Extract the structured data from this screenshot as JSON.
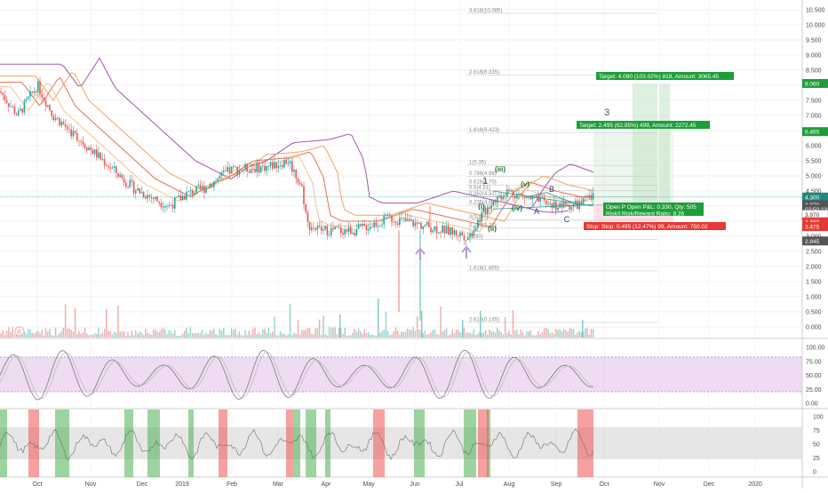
{
  "price_axis": {
    "ticks": [
      "10.500",
      "10.000",
      "9.500",
      "9.000",
      "8.500",
      "8.000",
      "7.500",
      "7.000",
      "6.500",
      "6.000",
      "5.500",
      "5.000",
      "4.500",
      "4.000",
      "3.500",
      "3.000",
      "2.500",
      "2.000",
      "1.500",
      "1.000",
      "0.500",
      "0.000"
    ],
    "tags": [
      {
        "text": "8.060",
        "color": "#1e9e3a",
        "value": 8.06
      },
      {
        "text": "6.465",
        "color": "#1e9e3a",
        "value": 6.465
      },
      {
        "text": "4.300",
        "color": "#1f8a80",
        "value": 4.3
      },
      {
        "text": "3.970",
        "color": "#555555",
        "value": 4.04
      },
      {
        "text": "02:50:13",
        "color": "#555555",
        "value": 3.9
      },
      {
        "text": "3.970",
        "color": "#ffffff",
        "value": 3.72
      },
      {
        "text": "3.480",
        "color": "#e53935",
        "value": 3.48
      },
      {
        "text": "3.475",
        "color": "#e53935",
        "value": 3.32
      },
      {
        "text": "2.845",
        "color": "#555555",
        "value": 2.845
      }
    ]
  },
  "stoch_axis": {
    "ticks": [
      "100.00",
      "75.00",
      "50.00",
      "25.00",
      "0.00"
    ]
  },
  "rsi_axis": {
    "ticks": [
      "100",
      "75",
      "50",
      "25",
      "0"
    ]
  },
  "time_axis": {
    "labels": [
      "Oct",
      "Nov",
      "Dec",
      "2019",
      "Feb",
      "Mar",
      "Apr",
      "May",
      "Jun",
      "Jul",
      "Aug",
      "Sep",
      "Oct",
      "Nov",
      "Dec",
      "2020"
    ]
  },
  "fib_levels": [
    {
      "text": "3.618(10.385)",
      "value": 10.385
    },
    {
      "text": "2.618(8.335)",
      "value": 8.335
    },
    {
      "text": "1.618(6.423)",
      "value": 6.423
    },
    {
      "text": "1(5.35)",
      "value": 5.35
    },
    {
      "text": "0.786(4.98)",
      "value": 4.98
    },
    {
      "text": "0.618(4.70)",
      "value": 4.7
    },
    {
      "text": "0.5(4.51)",
      "value": 4.51
    },
    {
      "text": "0.382(4.31)",
      "value": 4.31
    },
    {
      "text": "0.236(4.03)",
      "value": 4.03
    },
    {
      "text": "0(3.54)",
      "value": 3.54
    },
    {
      "text": "0.786(3.27)",
      "value": 3.27
    },
    {
      "text": "(2.90)",
      "value": 2.9
    },
    {
      "text": "1.618(1.855)",
      "value": 1.855
    },
    {
      "text": "2.618(0.145)",
      "value": 0.145
    }
  ],
  "wave_labels": {
    "i": "(i)",
    "ii": "(ii)",
    "iii": "(iii)",
    "iv": "(iv)",
    "v": "(v)",
    "one": "1",
    "three": "3",
    "a": "A",
    "b": "B",
    "c": "C"
  },
  "position": {
    "target_big": "Target: 4.090 (103.02%) 818, Amount: 3065.45",
    "target_small": "Target: 2.495 (62.85%) 499, Amount: 2272.45",
    "open_line1": "Open P  Open P&L: 0.330, Qty: 505",
    "open_line2": "Risk/I   Risk/Reward Ratio: 8.26",
    "stop": "Stop:   Stop: 0.495 (12.47%) 99, Amount: 750.02"
  },
  "earnings_marker": "E",
  "colors": {
    "up": "#26a69a",
    "down": "#ef5350",
    "ma_purple": "#9c5aa8",
    "ma_orange": "#f4a261",
    "ma_red": "#e76f51",
    "stoch_band": "#e1bee7",
    "target": "#1e9e3a",
    "stop": "#e53935"
  }
}
